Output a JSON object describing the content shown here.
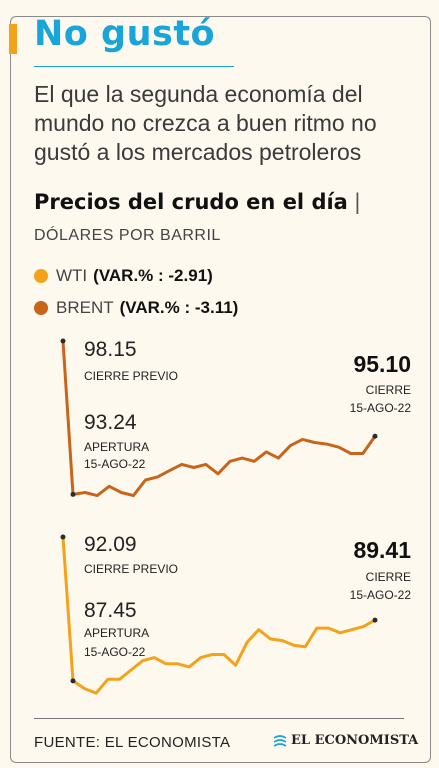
{
  "title": "No gustó",
  "subtitle": "El que la segunda economía del mundo no crezca a buen ritmo no gustó a los mercados petroleros",
  "chart_title": "Precios del crudo en el día",
  "chart_title_sep": "|",
  "units": "DÓLARES POR BARRIL",
  "legend": [
    {
      "name": "WTI",
      "var": "(VAR.% : -2.91)",
      "color": "#f5a21b"
    },
    {
      "name": "BRENT",
      "var": "(VAR.% : -3.11)",
      "color": "#c8651b"
    }
  ],
  "source": "FUENTE: EL ECONOMISTA",
  "logo_text": "EL ECONOMISTA",
  "colors": {
    "accent": "#1aa5d8",
    "wti": "#f5a21b",
    "brent": "#c8651b"
  },
  "chart_data": [
    {
      "type": "line",
      "series_name": "BRENT",
      "values": [
        98.15,
        93.24,
        93.3,
        93.2,
        93.5,
        93.3,
        93.2,
        93.7,
        93.8,
        94.0,
        94.2,
        94.1,
        94.2,
        93.9,
        94.3,
        94.4,
        94.3,
        94.6,
        94.4,
        94.8,
        95.0,
        94.9,
        94.85,
        94.75,
        94.55,
        94.55,
        95.1
      ],
      "labels": {
        "previous_close": {
          "value": "98.15",
          "label": "CIERRE PREVIO"
        },
        "open": {
          "value": "93.24",
          "label": "APERTURA",
          "date": "15-AGO-22"
        },
        "close": {
          "value": "95.10",
          "label": "CIERRE",
          "date": "15-AGO-22"
        }
      }
    },
    {
      "type": "line",
      "series_name": "WTI",
      "values": [
        92.09,
        87.45,
        87.2,
        87.05,
        87.5,
        87.5,
        87.8,
        88.1,
        88.2,
        88.0,
        88.0,
        87.9,
        88.2,
        88.3,
        88.3,
        87.95,
        88.7,
        89.1,
        88.8,
        88.75,
        88.6,
        88.55,
        89.15,
        89.15,
        89.0,
        89.1,
        89.2,
        89.41
      ],
      "labels": {
        "previous_close": {
          "value": "92.09",
          "label": "CIERRE PREVIO"
        },
        "open": {
          "value": "87.45",
          "label": "APERTURA",
          "date": "15-AGO-22"
        },
        "close": {
          "value": "89.41",
          "label": "CIERRE",
          "date": "15-AGO-22"
        }
      }
    }
  ]
}
